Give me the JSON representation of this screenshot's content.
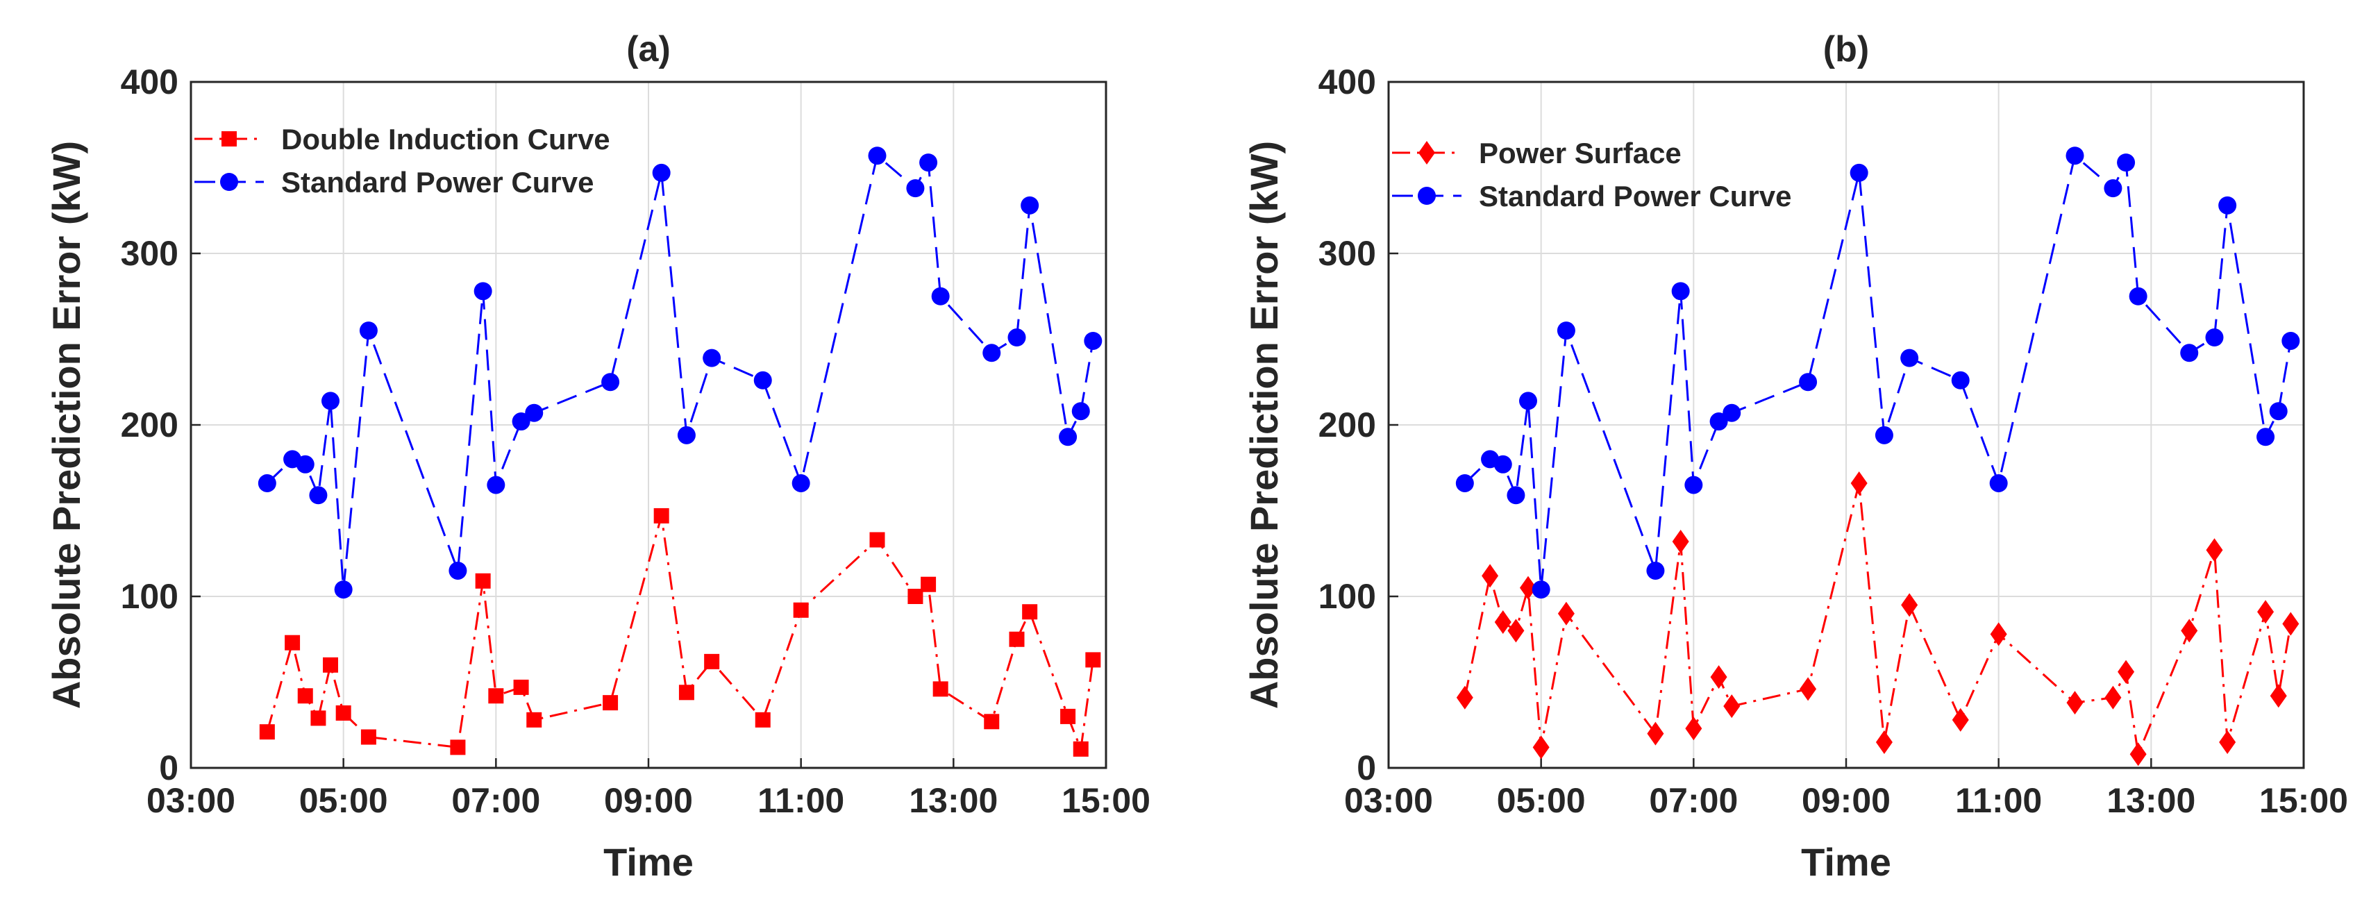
{
  "figure": {
    "charts": [
      {
        "type": "line",
        "title": "(a)",
        "xlabel": "Time",
        "ylabel": "Absolute Prediction Error (kW)",
        "xlim": [
          3,
          15
        ],
        "ylim": [
          0,
          400
        ],
        "xticks": [
          3,
          5,
          7,
          9,
          11,
          13,
          15
        ],
        "xtick_labels": [
          "03:00",
          "05:00",
          "07:00",
          "09:00",
          "11:00",
          "13:00",
          "15:00"
        ],
        "yticks": [
          0,
          100,
          200,
          300,
          400
        ],
        "ytick_labels": [
          "0",
          "100",
          "200",
          "300",
          "400"
        ],
        "grid": true,
        "legend_position": "top-left",
        "series": [
          {
            "name": "Double Induction Curve",
            "color": "#ff0000",
            "marker": "square",
            "dash": "dash-dot",
            "x": [
              4.0,
              4.33,
              4.5,
              4.67,
              4.83,
              5.0,
              5.33,
              6.5,
              6.83,
              7.0,
              7.33,
              7.5,
              8.5,
              9.17,
              9.5,
              9.83,
              10.5,
              11.0,
              12.0,
              12.5,
              12.67,
              12.83,
              13.5,
              13.83,
              14.0,
              14.5,
              14.67,
              14.83
            ],
            "y": [
              21,
              73,
              42,
              29,
              60,
              32,
              18,
              12,
              109,
              42,
              47,
              28,
              38,
              147,
              44,
              62,
              28,
              92,
              133,
              100,
              107,
              46,
              27,
              75,
              91,
              30,
              11,
              63
            ]
          },
          {
            "name": "Standard Power Curve",
            "color": "#0000ff",
            "marker": "circle",
            "dash": "dash",
            "x": [
              4.0,
              4.33,
              4.5,
              4.67,
              4.83,
              5.0,
              5.33,
              6.5,
              6.83,
              7.0,
              7.33,
              7.5,
              8.5,
              9.17,
              9.5,
              9.83,
              10.5,
              11.0,
              12.0,
              12.5,
              12.67,
              12.83,
              13.5,
              13.83,
              14.0,
              14.5,
              14.67,
              14.83
            ],
            "y": [
              166,
              180,
              177,
              159,
              214,
              104,
              255,
              115,
              278,
              165,
              202,
              207,
              225,
              347,
              194,
              239,
              226,
              166,
              357,
              338,
              353,
              275,
              242,
              251,
              328,
              193,
              208,
              249
            ]
          }
        ]
      },
      {
        "type": "line",
        "title": "(b)",
        "xlabel": "Time",
        "ylabel": "Absolute Prediction Error (kW)",
        "xlim": [
          3,
          15
        ],
        "ylim": [
          0,
          400
        ],
        "xticks": [
          3,
          5,
          7,
          9,
          11,
          13,
          15
        ],
        "xtick_labels": [
          "03:00",
          "05:00",
          "07:00",
          "09:00",
          "11:00",
          "13:00",
          "15:00"
        ],
        "yticks": [
          0,
          100,
          200,
          300,
          400
        ],
        "ytick_labels": [
          "0",
          "100",
          "200",
          "300",
          "400"
        ],
        "grid": true,
        "legend_position": "top-left",
        "series": [
          {
            "name": "Power Surface",
            "color": "#ff0000",
            "marker": "diamond",
            "dash": "dash-dot",
            "x": [
              4.0,
              4.33,
              4.5,
              4.67,
              4.83,
              5.0,
              5.33,
              6.5,
              6.83,
              7.0,
              7.33,
              7.5,
              8.5,
              9.17,
              9.5,
              9.83,
              10.5,
              11.0,
              12.0,
              12.5,
              12.67,
              12.83,
              13.5,
              13.83,
              14.0,
              14.5,
              14.67,
              14.83
            ],
            "y": [
              41,
              112,
              85,
              80,
              105,
              12,
              90,
              20,
              132,
              23,
              53,
              36,
              46,
              166,
              15,
              95,
              28,
              78,
              38,
              41,
              56,
              8,
              80,
              127,
              15,
              91,
              42,
              84
            ]
          },
          {
            "name": "Standard Power  Curve",
            "color": "#0000ff",
            "marker": "circle",
            "dash": "dash",
            "x": [
              4.0,
              4.33,
              4.5,
              4.67,
              4.83,
              5.0,
              5.33,
              6.5,
              6.83,
              7.0,
              7.33,
              7.5,
              8.5,
              9.17,
              9.5,
              9.83,
              10.5,
              11.0,
              12.0,
              12.5,
              12.67,
              12.83,
              13.5,
              13.83,
              14.0,
              14.5,
              14.67,
              14.83
            ],
            "y": [
              166,
              180,
              177,
              159,
              214,
              104,
              255,
              115,
              278,
              165,
              202,
              207,
              225,
              347,
              194,
              239,
              226,
              166,
              357,
              338,
              353,
              275,
              242,
              251,
              328,
              193,
              208,
              249
            ]
          }
        ]
      }
    ]
  }
}
